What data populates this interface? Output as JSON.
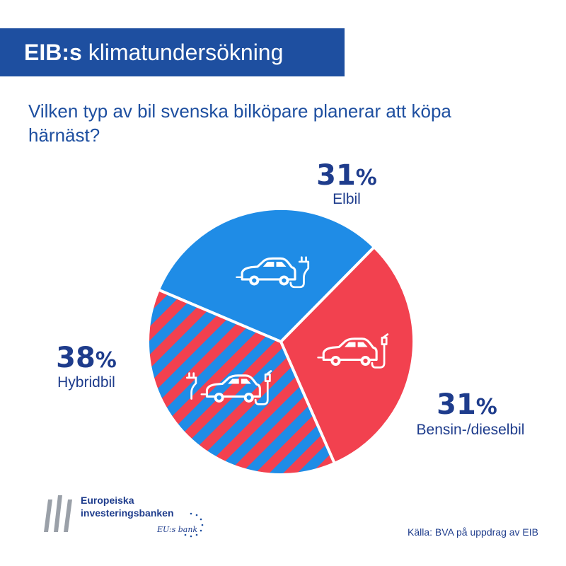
{
  "header": {
    "title_bold": "EIB:s",
    "title_rest": " klimatundersökning"
  },
  "question": "Vilken typ av bil svenska bilköpare planerar att köpa härnäst?",
  "chart_data": {
    "type": "pie",
    "title": "",
    "slices": [
      {
        "label": "Elbil",
        "value": 31,
        "percent_text": "31",
        "color": "#1f8ce6",
        "pattern": "solid",
        "icon": "electric-car-icon"
      },
      {
        "label": "Bensin-/dieselbil",
        "value": 31,
        "percent_text": "31",
        "color": "#f2414f",
        "pattern": "solid",
        "icon": "fuel-car-icon"
      },
      {
        "label": "Hybridbil",
        "value": 38,
        "percent_text": "38",
        "color": "#1f8ce6",
        "stripe_color": "#f2414f",
        "pattern": "striped",
        "icon": "hybrid-car-icon"
      }
    ],
    "percent_sign": "%"
  },
  "footer": {
    "source": "Källa: BVA på uppdrag av EIB",
    "logo_line1": "Europeiska",
    "logo_line2": "investeringsbanken",
    "logo_tagline": "EU:s bank"
  }
}
